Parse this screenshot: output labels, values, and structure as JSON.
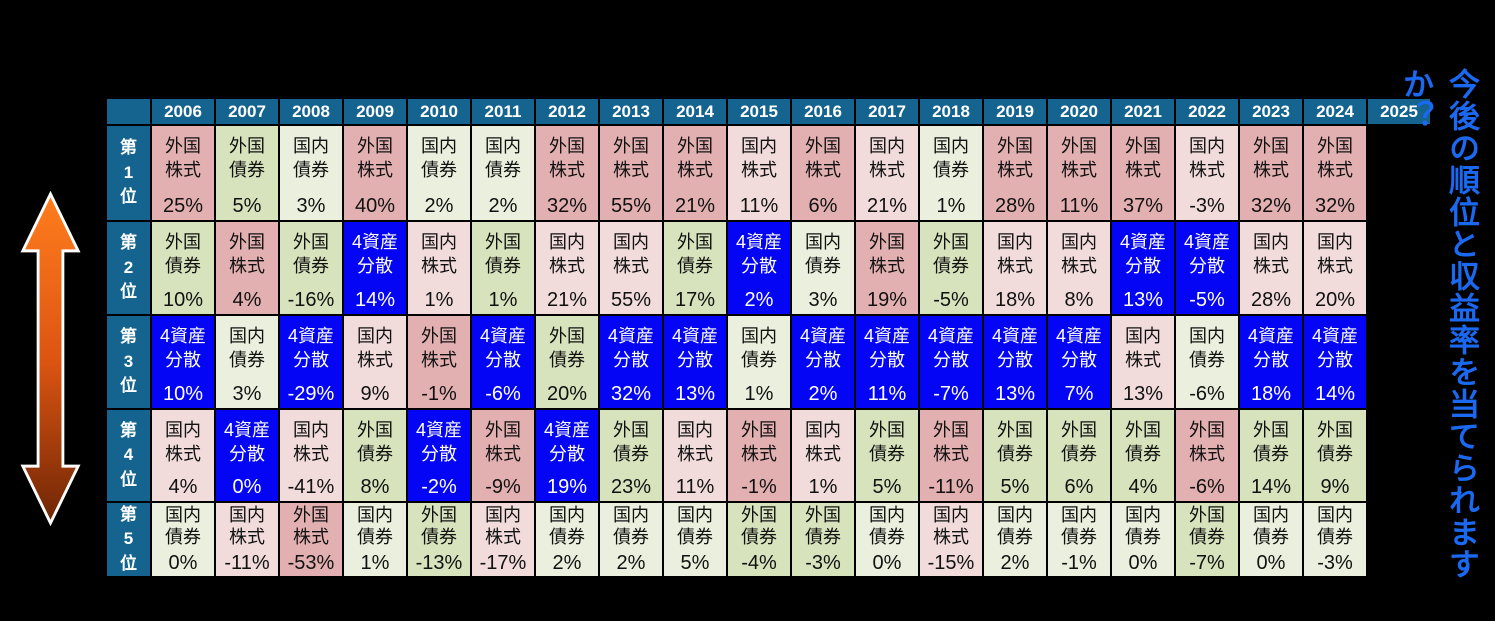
{
  "slide": {
    "background": "#000000",
    "caption": {
      "text": "今後の順位と収益率を当てられますか？",
      "color": "#1B69F0"
    },
    "arrow": {
      "meaning": "rank-high-low-updown-arrow",
      "top_color": "#FF7D1E",
      "mid_color": "#DD5512",
      "bottom_color": "#6F2606",
      "outline_color": "#FFFFFF"
    },
    "header_bg": "#14648F",
    "header_fg": "#FFFFFF"
  },
  "chart_data": {
    "type": "table",
    "columns": [
      "2006",
      "2007",
      "2008",
      "2009",
      "2010",
      "2011",
      "2012",
      "2013",
      "2014",
      "2015",
      "2016",
      "2017",
      "2018",
      "2019",
      "2020",
      "2021",
      "2022",
      "2023",
      "2024",
      "2025"
    ],
    "rank_labels": [
      "第1位",
      "第2位",
      "第3位",
      "第4位",
      "第5位"
    ],
    "assets": {
      "外国株式": {
        "lines": [
          "外国",
          "株式"
        ],
        "bg": "#E3B0B1",
        "fg": "#111111"
      },
      "国内株式": {
        "lines": [
          "国内",
          "株式"
        ],
        "bg": "#F1DBDB",
        "fg": "#111111"
      },
      "外国債券": {
        "lines": [
          "外国",
          "債券"
        ],
        "bg": "#D6E3BC",
        "fg": "#111111"
      },
      "国内債券": {
        "lines": [
          "国内",
          "債券"
        ],
        "bg": "#EAF0DD",
        "fg": "#111111"
      },
      "4資産分散": {
        "lines": [
          "4資産",
          "分散"
        ],
        "bg": "#0505F5",
        "fg": "#FFFFFF"
      }
    },
    "rows": [
      {
        "rank": "第1位",
        "cells": [
          {
            "year": "2006",
            "asset": "外国株式",
            "value": "25%"
          },
          {
            "year": "2007",
            "asset": "外国債券",
            "value": "5%"
          },
          {
            "year": "2008",
            "asset": "国内債券",
            "value": "3%"
          },
          {
            "year": "2009",
            "asset": "外国株式",
            "value": "40%"
          },
          {
            "year": "2010",
            "asset": "国内債券",
            "value": "2%"
          },
          {
            "year": "2011",
            "asset": "国内債券",
            "value": "2%"
          },
          {
            "year": "2012",
            "asset": "外国株式",
            "value": "32%"
          },
          {
            "year": "2013",
            "asset": "外国株式",
            "value": "55%"
          },
          {
            "year": "2014",
            "asset": "外国株式",
            "value": "21%"
          },
          {
            "year": "2015",
            "asset": "国内株式",
            "value": "11%"
          },
          {
            "year": "2016",
            "asset": "外国株式",
            "value": "6%"
          },
          {
            "year": "2017",
            "asset": "国内株式",
            "value": "21%"
          },
          {
            "year": "2018",
            "asset": "国内債券",
            "value": "1%"
          },
          {
            "year": "2019",
            "asset": "外国株式",
            "value": "28%"
          },
          {
            "year": "2020",
            "asset": "外国株式",
            "value": "11%"
          },
          {
            "year": "2021",
            "asset": "外国株式",
            "value": "37%"
          },
          {
            "year": "2022",
            "asset": "国内株式",
            "value": "-3%"
          },
          {
            "year": "2023",
            "asset": "外国株式",
            "value": "32%"
          },
          {
            "year": "2024",
            "asset": "外国株式",
            "value": "32%"
          }
        ]
      },
      {
        "rank": "第2位",
        "cells": [
          {
            "year": "2006",
            "asset": "外国債券",
            "value": "10%"
          },
          {
            "year": "2007",
            "asset": "外国株式",
            "value": "4%"
          },
          {
            "year": "2008",
            "asset": "外国債券",
            "value": "-16%"
          },
          {
            "year": "2009",
            "asset": "4資産分散",
            "value": "14%"
          },
          {
            "year": "2010",
            "asset": "国内株式",
            "value": "1%"
          },
          {
            "year": "2011",
            "asset": "外国債券",
            "value": "1%"
          },
          {
            "year": "2012",
            "asset": "国内株式",
            "value": "21%"
          },
          {
            "year": "2013",
            "asset": "国内株式",
            "value": "55%"
          },
          {
            "year": "2014",
            "asset": "外国債券",
            "value": "17%"
          },
          {
            "year": "2015",
            "asset": "4資産分散",
            "value": "2%"
          },
          {
            "year": "2016",
            "asset": "国内債券",
            "value": "3%"
          },
          {
            "year": "2017",
            "asset": "外国株式",
            "value": "19%"
          },
          {
            "year": "2018",
            "asset": "外国債券",
            "value": "-5%"
          },
          {
            "year": "2019",
            "asset": "国内株式",
            "value": "18%"
          },
          {
            "year": "2020",
            "asset": "国内株式",
            "value": "8%"
          },
          {
            "year": "2021",
            "asset": "4資産分散",
            "value": "13%"
          },
          {
            "year": "2022",
            "asset": "4資産分散",
            "value": "-5%"
          },
          {
            "year": "2023",
            "asset": "国内株式",
            "value": "28%"
          },
          {
            "year": "2024",
            "asset": "国内株式",
            "value": "20%"
          }
        ]
      },
      {
        "rank": "第3位",
        "cells": [
          {
            "year": "2006",
            "asset": "4資産分散",
            "value": "10%"
          },
          {
            "year": "2007",
            "asset": "国内債券",
            "value": "3%"
          },
          {
            "year": "2008",
            "asset": "4資産分散",
            "value": "-29%"
          },
          {
            "year": "2009",
            "asset": "国内株式",
            "value": "9%"
          },
          {
            "year": "2010",
            "asset": "外国株式",
            "value": "-1%"
          },
          {
            "year": "2011",
            "asset": "4資産分散",
            "value": "-6%"
          },
          {
            "year": "2012",
            "asset": "外国債券",
            "value": "20%"
          },
          {
            "year": "2013",
            "asset": "4資産分散",
            "value": "32%"
          },
          {
            "year": "2014",
            "asset": "4資産分散",
            "value": "13%"
          },
          {
            "year": "2015",
            "asset": "国内債券",
            "value": "1%"
          },
          {
            "year": "2016",
            "asset": "4資産分散",
            "value": "2%"
          },
          {
            "year": "2017",
            "asset": "4資産分散",
            "value": "11%"
          },
          {
            "year": "2018",
            "asset": "4資産分散",
            "value": "-7%"
          },
          {
            "year": "2019",
            "asset": "4資産分散",
            "value": "13%"
          },
          {
            "year": "2020",
            "asset": "4資産分散",
            "value": "7%"
          },
          {
            "year": "2021",
            "asset": "国内株式",
            "value": "13%"
          },
          {
            "year": "2022",
            "asset": "国内債券",
            "value": "-6%"
          },
          {
            "year": "2023",
            "asset": "4資産分散",
            "value": "18%"
          },
          {
            "year": "2024",
            "asset": "4資産分散",
            "value": "14%"
          }
        ]
      },
      {
        "rank": "第4位",
        "cells": [
          {
            "year": "2006",
            "asset": "国内株式",
            "value": "4%"
          },
          {
            "year": "2007",
            "asset": "4資産分散",
            "value": "0%"
          },
          {
            "year": "2008",
            "asset": "国内株式",
            "value": "-41%"
          },
          {
            "year": "2009",
            "asset": "外国債券",
            "value": "8%"
          },
          {
            "year": "2010",
            "asset": "4資産分散",
            "value": "-2%"
          },
          {
            "year": "2011",
            "asset": "外国株式",
            "value": "-9%"
          },
          {
            "year": "2012",
            "asset": "4資産分散",
            "value": "19%"
          },
          {
            "year": "2013",
            "asset": "外国債券",
            "value": "23%"
          },
          {
            "year": "2014",
            "asset": "国内株式",
            "value": "11%"
          },
          {
            "year": "2015",
            "asset": "外国株式",
            "value": "-1%"
          },
          {
            "year": "2016",
            "asset": "国内株式",
            "value": "1%"
          },
          {
            "year": "2017",
            "asset": "外国債券",
            "value": "5%"
          },
          {
            "year": "2018",
            "asset": "外国株式",
            "value": "-11%"
          },
          {
            "year": "2019",
            "asset": "外国債券",
            "value": "5%"
          },
          {
            "year": "2020",
            "asset": "外国債券",
            "value": "6%"
          },
          {
            "year": "2021",
            "asset": "外国債券",
            "value": "4%"
          },
          {
            "year": "2022",
            "asset": "外国株式",
            "value": "-6%"
          },
          {
            "year": "2023",
            "asset": "外国債券",
            "value": "14%"
          },
          {
            "year": "2024",
            "asset": "外国債券",
            "value": "9%"
          }
        ]
      },
      {
        "rank": "第5位",
        "cells": [
          {
            "year": "2006",
            "asset": "国内債券",
            "value": "0%"
          },
          {
            "year": "2007",
            "asset": "国内株式",
            "value": "-11%"
          },
          {
            "year": "2008",
            "asset": "外国株式",
            "value": "-53%"
          },
          {
            "year": "2009",
            "asset": "国内債券",
            "value": "1%"
          },
          {
            "year": "2010",
            "asset": "外国債券",
            "value": "-13%"
          },
          {
            "year": "2011",
            "asset": "国内株式",
            "value": "-17%"
          },
          {
            "year": "2012",
            "asset": "国内債券",
            "value": "2%"
          },
          {
            "year": "2013",
            "asset": "国内債券",
            "value": "2%"
          },
          {
            "year": "2014",
            "asset": "国内債券",
            "value": "5%"
          },
          {
            "year": "2015",
            "asset": "外国債券",
            "value": "-4%"
          },
          {
            "year": "2016",
            "asset": "外国債券",
            "value": "-3%"
          },
          {
            "year": "2017",
            "asset": "国内債券",
            "value": "0%"
          },
          {
            "year": "2018",
            "asset": "国内株式",
            "value": "-15%"
          },
          {
            "year": "2019",
            "asset": "国内債券",
            "value": "2%"
          },
          {
            "year": "2020",
            "asset": "国内債券",
            "value": "-1%"
          },
          {
            "year": "2021",
            "asset": "国内債券",
            "value": "0%"
          },
          {
            "year": "2022",
            "asset": "外国債券",
            "value": "-7%"
          },
          {
            "year": "2023",
            "asset": "国内債券",
            "value": "0%"
          },
          {
            "year": "2024",
            "asset": "国内債券",
            "value": "-3%"
          }
        ]
      }
    ]
  }
}
